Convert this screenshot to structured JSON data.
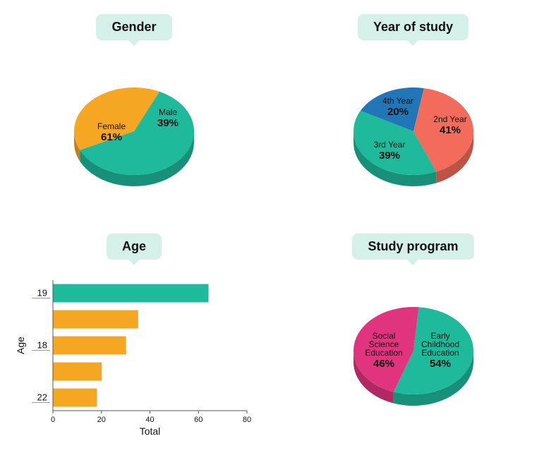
{
  "background_color": "#ffffff",
  "title_bubble_bg": "#d5f0e9",
  "title_bubble_fontsize": 18,
  "title_bubble_fontweight": 700,
  "gender_chart": {
    "title": "Gender",
    "type": "pie",
    "depth_color_factor": 0.78,
    "slices": [
      {
        "label": "Female",
        "pct": "61%",
        "value": 61,
        "color": "#1fb99b"
      },
      {
        "label": "Male",
        "pct": "39%",
        "value": 39,
        "color": "#f5a623"
      }
    ],
    "start_angle_deg": 295,
    "label_fontsize": 12,
    "pct_fontsize": 15
  },
  "year_chart": {
    "title": "Year of study",
    "type": "pie",
    "depth_color_factor": 0.78,
    "slices": [
      {
        "label": "2nd Year",
        "pct": "41%",
        "value": 41,
        "color": "#f26b5b"
      },
      {
        "label": "3rd Year",
        "pct": "39%",
        "value": 39,
        "color": "#1fb99b"
      },
      {
        "label": "4th Year",
        "pct": "20%",
        "value": 20,
        "color": "#2176b8"
      }
    ],
    "start_angle_deg": 280,
    "label_fontsize": 12,
    "pct_fontsize": 15
  },
  "age_chart": {
    "title": "Age",
    "type": "bar-horizontal",
    "xlabel": "Total",
    "ylabel": "Age",
    "xlim": [
      0,
      80
    ],
    "xtick_step": 20,
    "bar_height_ratio": 0.7,
    "axis_color": "#555555",
    "grid_color": "#dddddd",
    "categories": [
      "19",
      "",
      "18",
      "",
      "22"
    ],
    "values": [
      64,
      35,
      30,
      20,
      18
    ],
    "bar_colors": [
      "#1fb99b",
      "#f5a623",
      "#f5a623",
      "#f5a623",
      "#f5a623"
    ],
    "label_fontsize": 13,
    "tick_fontsize": 11,
    "axis_title_fontsize": 14
  },
  "program_chart": {
    "title": "Study program",
    "type": "pie",
    "depth_color_factor": 0.78,
    "slices": [
      {
        "label": "Early Childhood Education",
        "pct": "54%",
        "value": 54,
        "color": "#1fb99b"
      },
      {
        "label": "Social Science Education",
        "pct": "46%",
        "value": 46,
        "color": "#e0357e"
      }
    ],
    "start_angle_deg": 275,
    "label_fontsize": 12,
    "pct_fontsize": 15
  }
}
